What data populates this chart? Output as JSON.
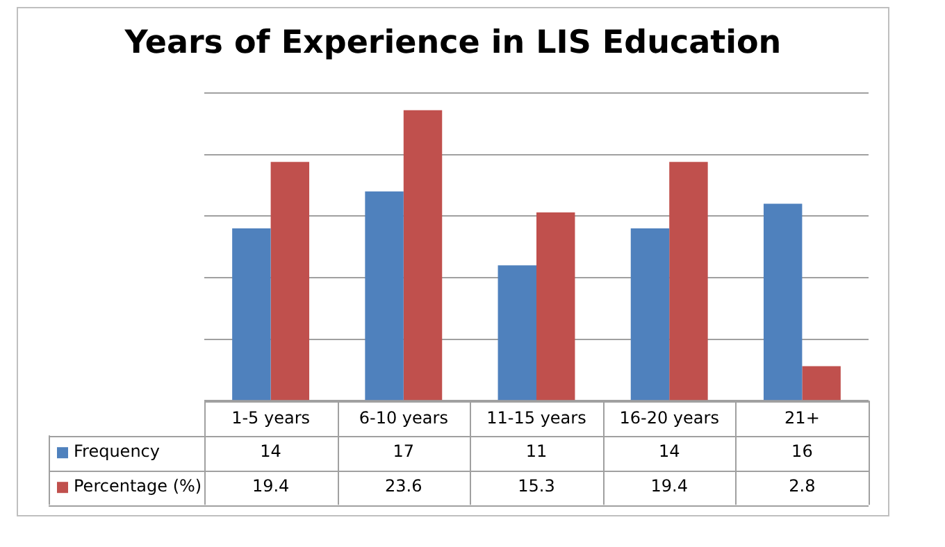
{
  "chart_data": {
    "type": "bar",
    "title": "Years of Experience in LIS Education",
    "categories": [
      "1-5 years",
      "6-10 years",
      "11-15 years",
      "16-20 years",
      "21+"
    ],
    "series": [
      {
        "name": "Frequency",
        "color": "#4f81bd",
        "values": [
          14,
          17,
          11,
          14,
          16
        ]
      },
      {
        "name": "Percentage (%)",
        "color": "#c0504d",
        "values": [
          19.4,
          23.6,
          15.3,
          19.4,
          2.8
        ]
      }
    ],
    "ylim": [
      0,
      25
    ],
    "yticks": [
      {
        "value": 0,
        "label": null
      },
      {
        "value": 5,
        "label": null
      },
      {
        "value": 10,
        "label": null
      },
      {
        "value": 15,
        "label": null
      },
      {
        "value": 20,
        "label": null
      },
      {
        "value": 25,
        "label": null
      }
    ],
    "grid": "y",
    "legend": "bottom",
    "data_labels": true,
    "tick_labels": "x"
  }
}
